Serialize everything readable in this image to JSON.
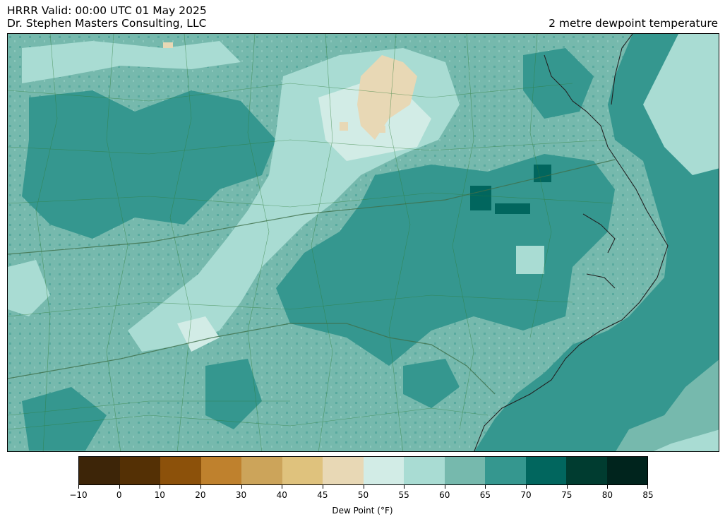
{
  "header": {
    "line1": "HRRR  Valid: 00:00 UTC 01 May 2025",
    "line2": "Dr. Stephen Masters Consulting, LLC",
    "field": "2 metre dewpoint temperature"
  },
  "colorbar": {
    "label": "Dew Point (°F)",
    "bounds": [
      -10,
      0,
      10,
      20,
      30,
      40,
      45,
      50,
      55,
      60,
      65,
      70,
      75,
      80,
      85
    ],
    "tick_labels": [
      "−10",
      "0",
      "10",
      "20",
      "30",
      "40",
      "45",
      "50",
      "55",
      "60",
      "65",
      "70",
      "75",
      "80",
      "85"
    ],
    "colors": [
      "#3d2508",
      "#543005",
      "#8c510a",
      "#bf812d",
      "#cca45a",
      "#dfc27d",
      "#e8d8b5",
      "#d2ece6",
      "#a9dcd3",
      "#76b9ad",
      "#35978f",
      "#01665e",
      "#003c30",
      "#00241d"
    ]
  },
  "map": {
    "region": "North Carolina and Virginia",
    "colors": {
      "land_border": "#2f7d3a",
      "coast": "#222222",
      "ocean_far": "#a9dcd3"
    }
  }
}
